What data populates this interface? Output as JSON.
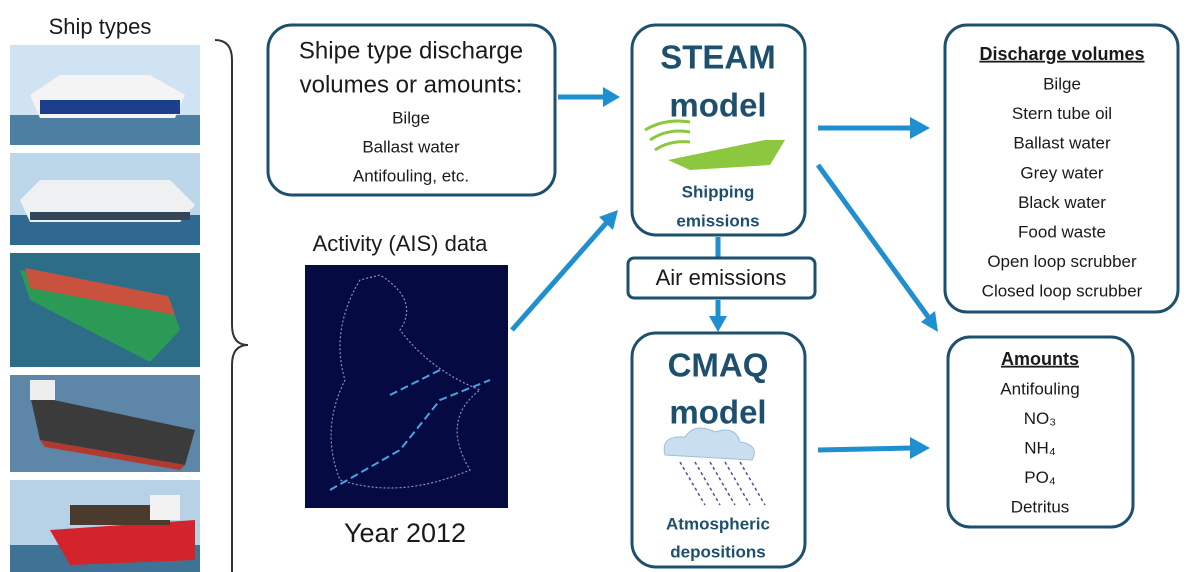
{
  "ship_types": {
    "title": "Ship types"
  },
  "source_box": {
    "title_lines": [
      "Shipe type discharge",
      "volumes or amounts:"
    ],
    "items": [
      "Bilge",
      "Ballast water",
      "Antifouling, etc."
    ]
  },
  "activity": {
    "title": "Activity (AIS) data",
    "caption": "Year 2012"
  },
  "steam": {
    "title": "STEAM",
    "subtitle": "model",
    "label_lines": [
      "Shipping",
      "emissions"
    ]
  },
  "air_emissions": "Air emissions",
  "cmaq": {
    "title": "CMAQ",
    "subtitle": "model",
    "label_lines": [
      "Atmospheric",
      "depositions"
    ]
  },
  "discharge": {
    "title": "Discharge volumes",
    "items": [
      "Bilge",
      "Stern tube oil",
      "Ballast water",
      "Grey water",
      "Black water",
      "Food waste",
      "Open loop scrubber",
      "Closed loop scrubber"
    ]
  },
  "amounts": {
    "title": "Amounts",
    "items": [
      "Antifouling",
      "NO₃",
      "NH₄",
      "PO₄",
      "Detritus"
    ]
  }
}
